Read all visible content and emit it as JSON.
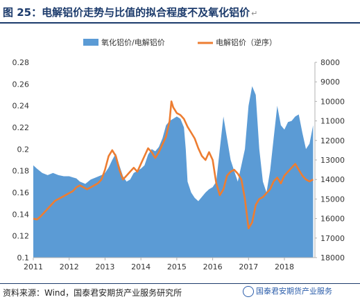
{
  "header": {
    "title": "图 25：电解铝价走势与比值的拟合程度不及氧化铝价",
    "return_mark": "↵"
  },
  "footer": {
    "source": "资料来源：Wind，国泰君安期货产业服务研究所",
    "watermark": "国泰君安期货产业服务"
  },
  "colors": {
    "area": "#5b9bd5",
    "line": "#ed7d31",
    "title": "#1b3a6b"
  },
  "chart_data": {
    "type": "area",
    "x": [
      "2011",
      "2012",
      "2013",
      "2014",
      "2015",
      "2016",
      "2017",
      "2018"
    ],
    "y_left_ticks": [
      "0.1",
      "0.12",
      "0.14",
      "0.16",
      "0.18",
      "0.2",
      "0.22",
      "0.24",
      "0.26",
      "0.28"
    ],
    "y_right_ticks": [
      "8000",
      "9000",
      "10000",
      "11000",
      "12000",
      "13000",
      "14000",
      "15000",
      "16000",
      "17000",
      "18000"
    ],
    "ylim_left": [
      0.1,
      0.28
    ],
    "ylim_right": [
      18000,
      8000
    ],
    "right_axis_reversed": true,
    "legend_position": "top",
    "series": [
      {
        "name": "氧化铝价/电解铝价",
        "axis": "left",
        "type": "area",
        "points": [
          [
            2011.0,
            0.185
          ],
          [
            2011.1,
            0.182
          ],
          [
            2011.25,
            0.178
          ],
          [
            2011.4,
            0.176
          ],
          [
            2011.55,
            0.178
          ],
          [
            2011.7,
            0.176
          ],
          [
            2011.85,
            0.175
          ],
          [
            2012.0,
            0.175
          ],
          [
            2012.1,
            0.174
          ],
          [
            2012.2,
            0.173
          ],
          [
            2012.3,
            0.17
          ],
          [
            2012.45,
            0.168
          ],
          [
            2012.6,
            0.172
          ],
          [
            2012.75,
            0.174
          ],
          [
            2012.9,
            0.176
          ],
          [
            2013.0,
            0.178
          ],
          [
            2013.1,
            0.183
          ],
          [
            2013.2,
            0.19
          ],
          [
            2013.3,
            0.196
          ],
          [
            2013.4,
            0.185
          ],
          [
            2013.5,
            0.175
          ],
          [
            2013.6,
            0.17
          ],
          [
            2013.7,
            0.172
          ],
          [
            2013.8,
            0.178
          ],
          [
            2013.9,
            0.18
          ],
          [
            2014.0,
            0.182
          ],
          [
            2014.1,
            0.185
          ],
          [
            2014.2,
            0.195
          ],
          [
            2014.3,
            0.2
          ],
          [
            2014.4,
            0.198
          ],
          [
            2014.5,
            0.202
          ],
          [
            2014.6,
            0.21
          ],
          [
            2014.7,
            0.222
          ],
          [
            2014.8,
            0.226
          ],
          [
            2014.9,
            0.228
          ],
          [
            2015.0,
            0.23
          ],
          [
            2015.1,
            0.228
          ],
          [
            2015.2,
            0.22
          ],
          [
            2015.25,
            0.2
          ],
          [
            2015.3,
            0.17
          ],
          [
            2015.4,
            0.16
          ],
          [
            2015.5,
            0.155
          ],
          [
            2015.6,
            0.152
          ],
          [
            2015.7,
            0.156
          ],
          [
            2015.8,
            0.16
          ],
          [
            2015.9,
            0.163
          ],
          [
            2016.0,
            0.165
          ],
          [
            2016.1,
            0.17
          ],
          [
            2016.2,
            0.2
          ],
          [
            2016.3,
            0.23
          ],
          [
            2016.4,
            0.21
          ],
          [
            2016.5,
            0.19
          ],
          [
            2016.6,
            0.18
          ],
          [
            2016.7,
            0.17
          ],
          [
            2016.8,
            0.185
          ],
          [
            2016.9,
            0.2
          ],
          [
            2017.0,
            0.24
          ],
          [
            2017.1,
            0.258
          ],
          [
            2017.2,
            0.25
          ],
          [
            2017.3,
            0.2
          ],
          [
            2017.4,
            0.17
          ],
          [
            2017.5,
            0.16
          ],
          [
            2017.6,
            0.18
          ],
          [
            2017.7,
            0.21
          ],
          [
            2017.8,
            0.24
          ],
          [
            2017.9,
            0.222
          ],
          [
            2018.0,
            0.218
          ],
          [
            2018.1,
            0.225
          ],
          [
            2018.2,
            0.226
          ],
          [
            2018.3,
            0.23
          ],
          [
            2018.4,
            0.232
          ],
          [
            2018.5,
            0.215
          ],
          [
            2018.6,
            0.2
          ],
          [
            2018.7,
            0.205
          ],
          [
            2018.8,
            0.222
          ]
        ]
      },
      {
        "name": "电解铝价（逆序）",
        "axis": "right",
        "type": "line",
        "points": [
          [
            2011.0,
            16000
          ],
          [
            2011.1,
            16050
          ],
          [
            2011.2,
            15900
          ],
          [
            2011.3,
            15700
          ],
          [
            2011.4,
            15500
          ],
          [
            2011.5,
            15300
          ],
          [
            2011.6,
            15100
          ],
          [
            2011.7,
            15000
          ],
          [
            2011.8,
            14900
          ],
          [
            2011.9,
            14800
          ],
          [
            2012.0,
            14700
          ],
          [
            2012.1,
            14600
          ],
          [
            2012.2,
            14400
          ],
          [
            2012.3,
            14300
          ],
          [
            2012.4,
            14400
          ],
          [
            2012.5,
            14500
          ],
          [
            2012.6,
            14400
          ],
          [
            2012.7,
            14300
          ],
          [
            2012.8,
            14200
          ],
          [
            2012.9,
            14000
          ],
          [
            2013.0,
            13500
          ],
          [
            2013.1,
            12800
          ],
          [
            2013.2,
            12500
          ],
          [
            2013.3,
            12800
          ],
          [
            2013.4,
            13500
          ],
          [
            2013.5,
            14000
          ],
          [
            2013.6,
            13800
          ],
          [
            2013.7,
            13600
          ],
          [
            2013.8,
            13400
          ],
          [
            2013.9,
            13600
          ],
          [
            2014.0,
            13200
          ],
          [
            2014.1,
            12800
          ],
          [
            2014.2,
            12400
          ],
          [
            2014.3,
            12600
          ],
          [
            2014.4,
            12900
          ],
          [
            2014.5,
            12600
          ],
          [
            2014.6,
            12200
          ],
          [
            2014.7,
            11800
          ],
          [
            2014.8,
            11000
          ],
          [
            2014.85,
            10000
          ],
          [
            2014.9,
            10300
          ],
          [
            2015.0,
            10600
          ],
          [
            2015.1,
            10700
          ],
          [
            2015.2,
            10900
          ],
          [
            2015.3,
            11300
          ],
          [
            2015.4,
            11600
          ],
          [
            2015.5,
            11900
          ],
          [
            2015.6,
            12400
          ],
          [
            2015.7,
            12800
          ],
          [
            2015.8,
            13000
          ],
          [
            2015.9,
            12600
          ],
          [
            2016.0,
            13000
          ],
          [
            2016.1,
            14200
          ],
          [
            2016.2,
            14800
          ],
          [
            2016.3,
            14500
          ],
          [
            2016.4,
            13800
          ],
          [
            2016.5,
            13600
          ],
          [
            2016.6,
            13500
          ],
          [
            2016.7,
            13700
          ],
          [
            2016.8,
            14000
          ],
          [
            2016.9,
            15000
          ],
          [
            2017.0,
            16500
          ],
          [
            2017.1,
            16200
          ],
          [
            2017.2,
            15300
          ],
          [
            2017.3,
            15000
          ],
          [
            2017.4,
            14900
          ],
          [
            2017.5,
            14700
          ],
          [
            2017.6,
            14500
          ],
          [
            2017.7,
            14100
          ],
          [
            2017.8,
            13900
          ],
          [
            2017.9,
            14200
          ],
          [
            2018.0,
            13800
          ],
          [
            2018.1,
            13600
          ],
          [
            2018.2,
            13400
          ],
          [
            2018.3,
            13200
          ],
          [
            2018.4,
            13500
          ],
          [
            2018.5,
            13800
          ],
          [
            2018.6,
            14000
          ],
          [
            2018.7,
            14100
          ],
          [
            2018.8,
            14000
          ]
        ]
      }
    ]
  }
}
